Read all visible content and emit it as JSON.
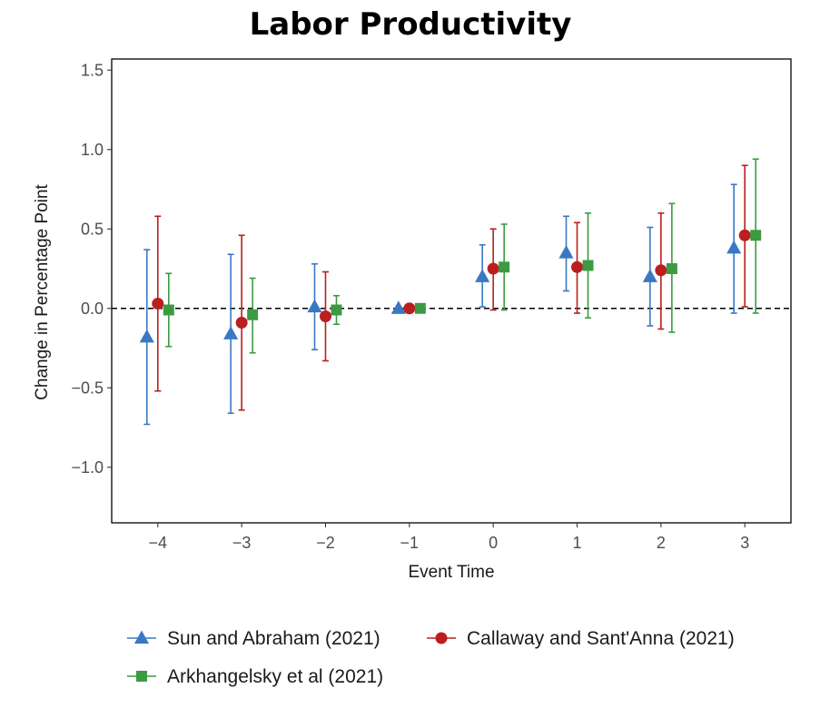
{
  "chart_data": {
    "type": "scatter",
    "title": "Labor Productivity",
    "xlabel": "Event Time",
    "ylabel": "Change in Percentage Point",
    "x": [
      -4,
      -3,
      -2,
      -1,
      0,
      1,
      2,
      3
    ],
    "xticks": [
      "−4",
      "−3",
      "−2",
      "−1",
      "0",
      "1",
      "2",
      "3"
    ],
    "yticks": [
      {
        "value": 1.5,
        "label": "1.5"
      },
      {
        "value": 1.0,
        "label": "1.0"
      },
      {
        "value": 0.5,
        "label": "0.5"
      },
      {
        "value": 0.0,
        "label": "0.0"
      },
      {
        "value": -0.5,
        "label": "−0.5"
      },
      {
        "value": -1.0,
        "label": "−1.0"
      }
    ],
    "xlim": [
      -4.55,
      3.55
    ],
    "ylim": [
      -1.35,
      1.57
    ],
    "reference_line": {
      "y": 0,
      "style": "dashed"
    },
    "grid": false,
    "legend_position": "bottom",
    "series": [
      {
        "name": "Sun and Abraham (2021)",
        "color": "#3a78c3",
        "marker": "triangle",
        "offset": -0.13,
        "values": [
          -0.18,
          -0.16,
          0.01,
          0.0,
          0.2,
          0.35,
          0.2,
          0.38
        ],
        "lower": [
          -0.73,
          -0.66,
          -0.26,
          0.0,
          0.01,
          0.11,
          -0.11,
          -0.03
        ],
        "upper": [
          0.37,
          0.34,
          0.28,
          0.0,
          0.4,
          0.58,
          0.51,
          0.78
        ]
      },
      {
        "name": "Callaway and Sant'Anna (2021)",
        "color": "#bb1e1e",
        "marker": "circle",
        "offset": 0.0,
        "values": [
          0.03,
          -0.09,
          -0.05,
          0.0,
          0.25,
          0.26,
          0.24,
          0.46
        ],
        "lower": [
          -0.52,
          -0.64,
          -0.33,
          0.0,
          -0.01,
          -0.03,
          -0.13,
          0.01
        ],
        "upper": [
          0.58,
          0.46,
          0.23,
          0.0,
          0.5,
          0.54,
          0.6,
          0.9
        ]
      },
      {
        "name": "Arkhangelsky et al (2021)",
        "color": "#3c9a42",
        "marker": "square",
        "offset": 0.13,
        "values": [
          -0.01,
          -0.04,
          -0.01,
          0.0,
          0.26,
          0.27,
          0.25,
          0.46
        ],
        "lower": [
          -0.24,
          -0.28,
          -0.1,
          -0.01,
          -0.01,
          -0.06,
          -0.15,
          -0.03
        ],
        "upper": [
          0.22,
          0.19,
          0.08,
          0.02,
          0.53,
          0.6,
          0.66,
          0.94
        ]
      }
    ]
  }
}
